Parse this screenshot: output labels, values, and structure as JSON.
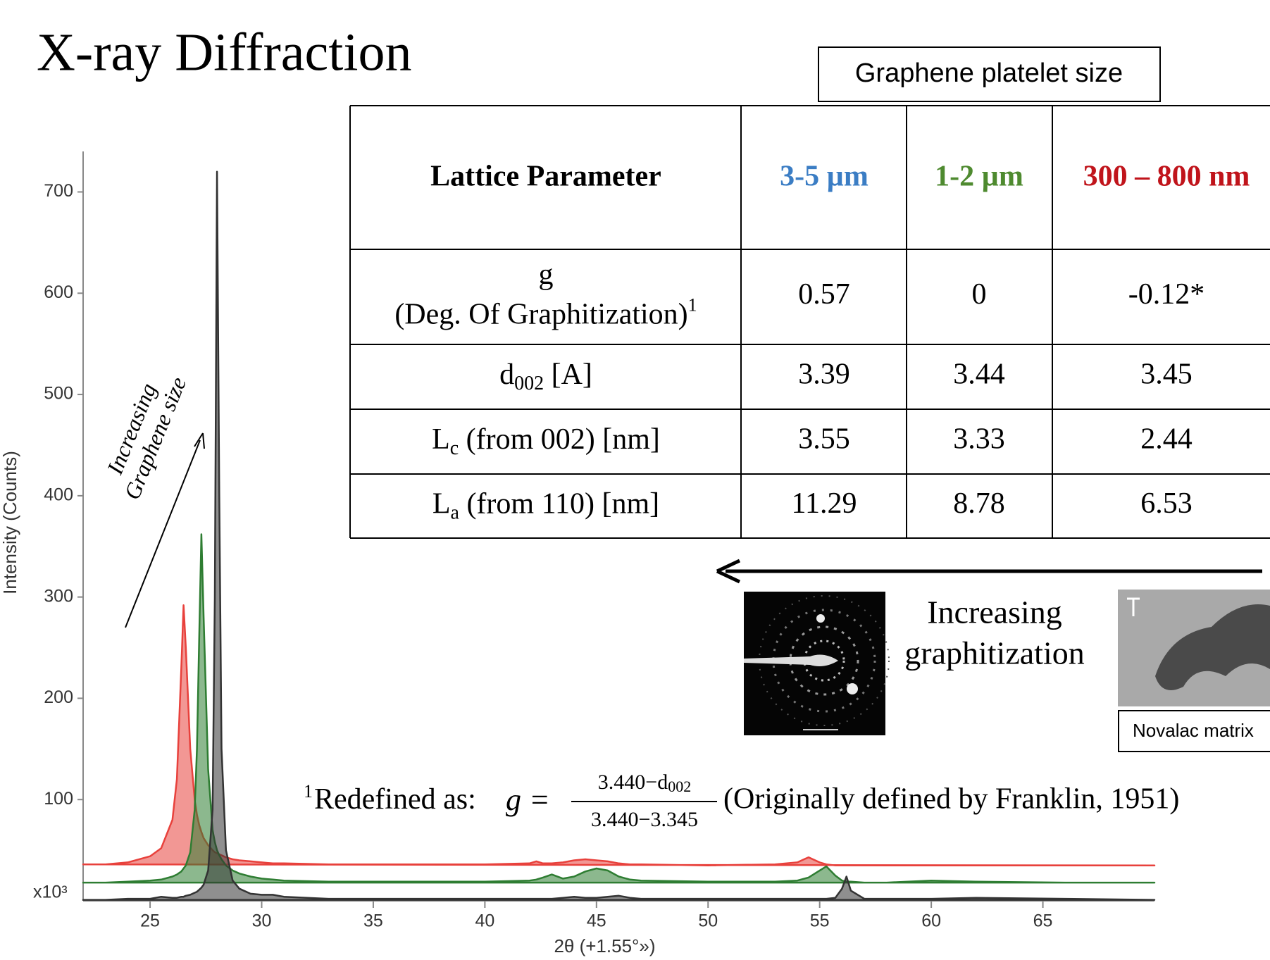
{
  "title": "X-ray Diffraction",
  "box_label": "Graphene platelet size",
  "table": {
    "header": [
      {
        "text": "Lattice Parameter",
        "color": "#000000"
      },
      {
        "text": "3-5 µm",
        "color": "#3b7dc4"
      },
      {
        "text": "1-2 µm",
        "color": "#4e8a2f"
      },
      {
        "text": "300 – 800 nm",
        "color": "#c0141b"
      }
    ],
    "rows": [
      {
        "label": {
          "text": "g",
          "line2": "(Deg. Of Graphitization)",
          "sup": "1"
        },
        "values": [
          "0.57",
          "0",
          "-0.12*"
        ]
      },
      {
        "label": {
          "text": "d",
          "sub": "002",
          "rest": " [A]"
        },
        "values": [
          "3.39",
          "3.44",
          "3.45"
        ]
      },
      {
        "label": {
          "text": "L",
          "sub": "c",
          "rest": " (from 002) [nm]"
        },
        "values": [
          "3.55",
          "3.33",
          "2.44"
        ]
      },
      {
        "label": {
          "text": "L",
          "sub": "a",
          "rest": " (from 110) [nm]"
        },
        "values": [
          "11.29",
          "8.78",
          "6.53"
        ]
      }
    ]
  },
  "graphitization_label": [
    "Increasing",
    "graphitization"
  ],
  "image_caption": "Novalac matrix",
  "footnote": {
    "mark": "1",
    "text": "Redefined as:",
    "lhs": "g =",
    "numerator": "3.440−d",
    "numerator_sub": "002",
    "denominator": "3.440−3.345",
    "after": "(Originally defined by Franklin, 1951)"
  },
  "chart_data": {
    "type": "area",
    "x_label": "2θ (+1.55°»)",
    "y_label": "Intensity (Counts)",
    "y_multiplier": "x10³",
    "annotation": [
      "Increasing",
      "Graphene size"
    ],
    "xlim": [
      22,
      70
    ],
    "xticks": [
      25,
      30,
      35,
      40,
      45,
      50,
      55,
      60,
      65
    ],
    "ylim": [
      0,
      740
    ],
    "yticks": [
      100,
      200,
      300,
      400,
      500,
      600,
      700
    ],
    "x": [
      22,
      23,
      24,
      25,
      25.5,
      26,
      26.2,
      26.4,
      26.5,
      26.6,
      26.8,
      27,
      27.1,
      27.2,
      27.3,
      27.4,
      27.6,
      27.8,
      27.9,
      28,
      28.1,
      28.2,
      28.4,
      28.7,
      29,
      29.5,
      30,
      30.5,
      31,
      33,
      36,
      40,
      42,
      42.3,
      42.6,
      43,
      43.5,
      44,
      44.5,
      45,
      45.5,
      46,
      46.5,
      47,
      50,
      53,
      54,
      54.5,
      55,
      55.3,
      55.7,
      56,
      56.2,
      56.4,
      57,
      58,
      60,
      62,
      66,
      70
    ],
    "series": [
      {
        "color": "#e8413c",
        "values": [
          36,
          36,
          38,
          44,
          52,
          80,
          120,
          230,
          292,
          250,
          150,
          100,
          85,
          75,
          68,
          62,
          55,
          50,
          48,
          47,
          46,
          45,
          43,
          41,
          40,
          39,
          38,
          37,
          37,
          36,
          36,
          36,
          37,
          39,
          37,
          37,
          38,
          40,
          41,
          40,
          39,
          37,
          36,
          36,
          35,
          36,
          38,
          43,
          38,
          36,
          35,
          35,
          35,
          35,
          35,
          35,
          35,
          35,
          35,
          35
        ]
      },
      {
        "color": "#2e7d32",
        "values": [
          18,
          18,
          19,
          20,
          21,
          24,
          26,
          29,
          32,
          35,
          48,
          90,
          150,
          260,
          362,
          280,
          130,
          70,
          58,
          50,
          45,
          41,
          35,
          30,
          27,
          24,
          22,
          21,
          20,
          19,
          19,
          19,
          20,
          21,
          23,
          26,
          22,
          24,
          29,
          32,
          30,
          24,
          21,
          20,
          19,
          19,
          20,
          23,
          30,
          34,
          25,
          20,
          19,
          19,
          18,
          18,
          20,
          19,
          18,
          18
        ]
      },
      {
        "color": "#333333",
        "values": [
          1,
          1,
          2,
          2,
          4,
          3,
          3,
          4,
          4,
          5,
          6,
          8,
          9,
          11,
          13,
          16,
          30,
          90,
          300,
          720,
          400,
          150,
          50,
          20,
          12,
          7,
          6,
          6,
          4,
          2,
          2,
          2,
          2,
          2,
          2,
          2,
          3,
          4,
          3,
          3,
          4,
          5,
          3,
          2,
          2,
          2,
          2,
          2,
          2,
          2,
          3,
          12,
          24,
          10,
          2,
          2,
          2,
          3,
          2,
          1
        ]
      }
    ]
  }
}
